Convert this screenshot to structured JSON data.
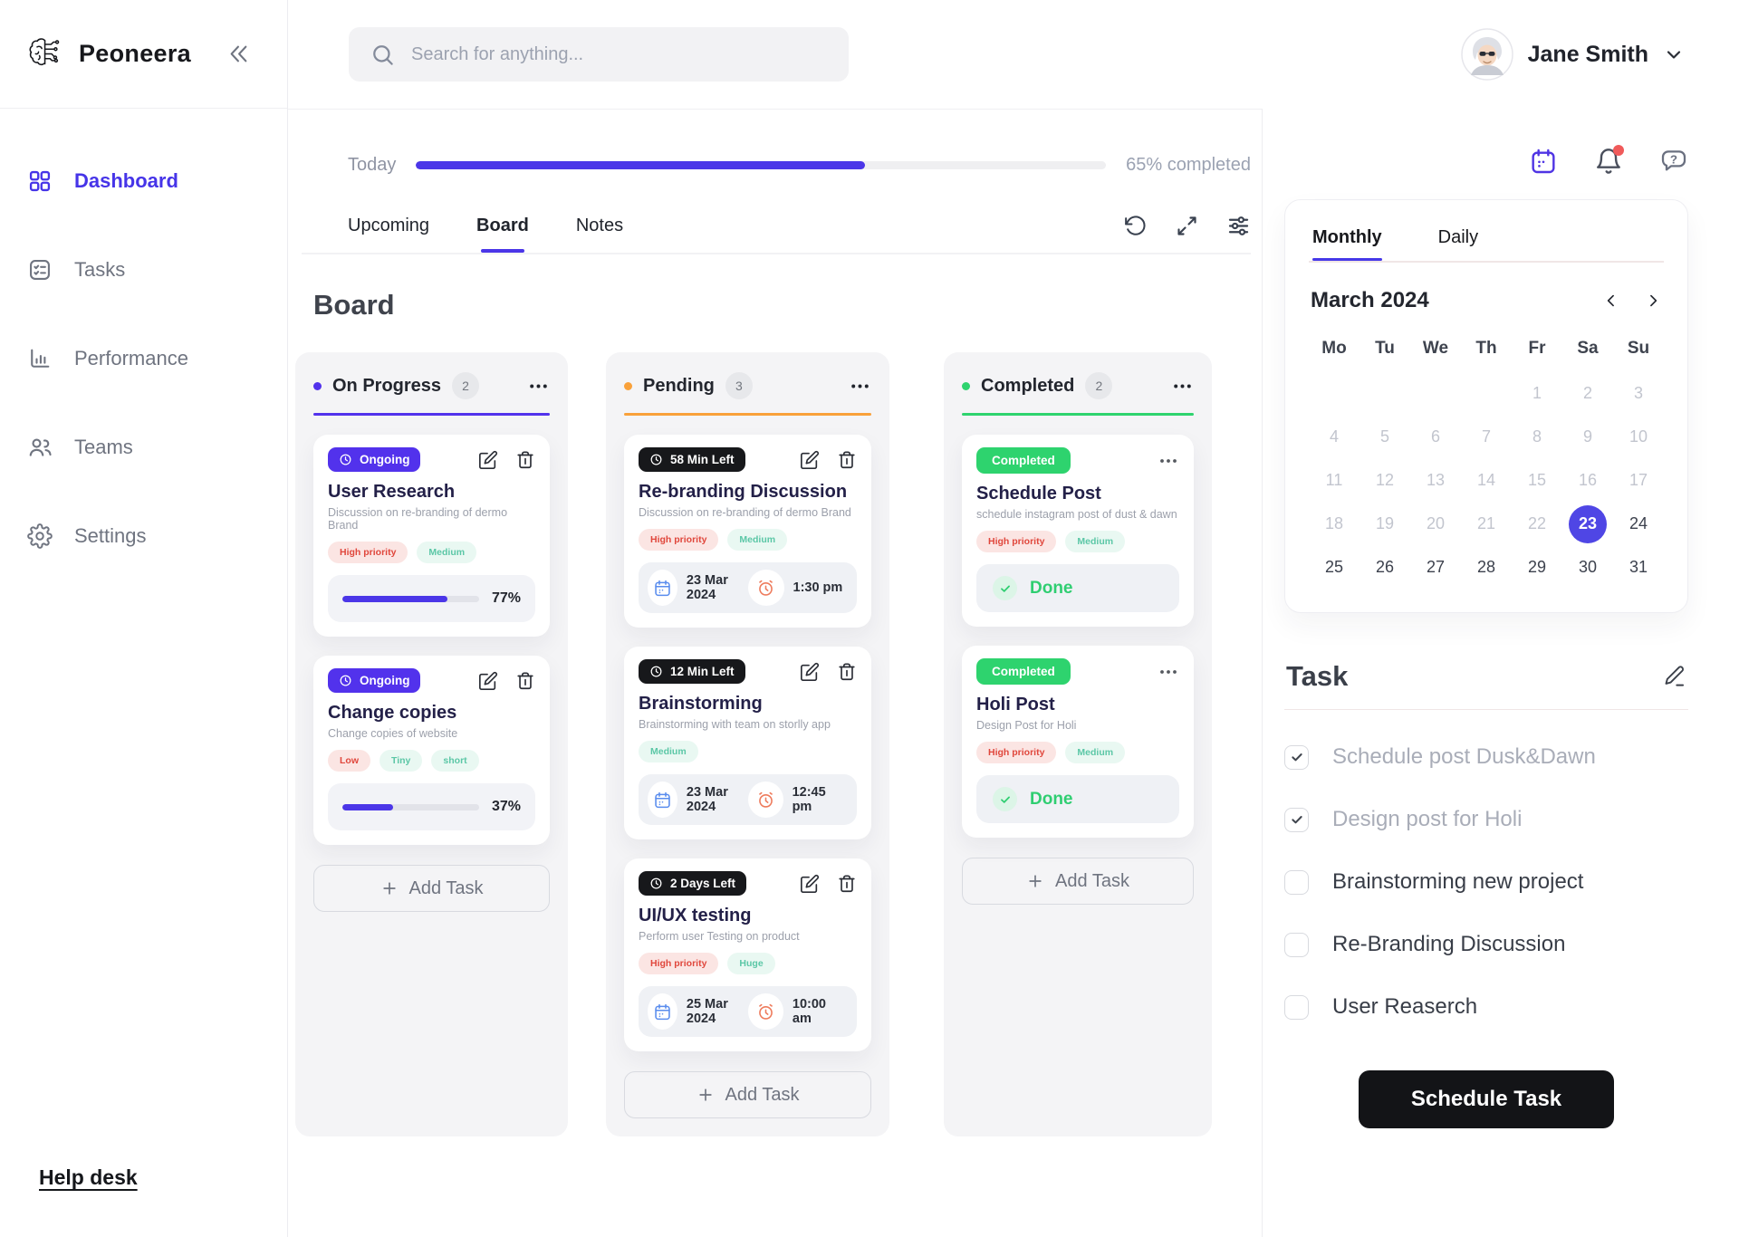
{
  "colors": {
    "accent": "#4B36E8",
    "on_progress": "#5232EC",
    "pending": "#F9A13A",
    "completed": "#2ED36E",
    "danger_tag_text": "#E0473C",
    "danger_tag_bg": "#FBE5E3",
    "mint_tag_text": "#5BC7A6",
    "mint_tag_bg": "#E9F8F2",
    "dark_badge": "#17181B",
    "done_green": "#2FCE71",
    "selected_day_bg": "#4F46E5",
    "notification_dot": "#F05A5A",
    "calendar_chip_icon": "#5A8DEE",
    "alarm_chip_icon": "#EE7B5C"
  },
  "sidebar": {
    "brand": "Peoneera",
    "items": [
      {
        "label": "Dashboard",
        "icon": "grid-icon",
        "active": true
      },
      {
        "label": "Tasks",
        "icon": "tasks-icon",
        "active": false
      },
      {
        "label": "Performance",
        "icon": "bar-chart-icon",
        "active": false
      },
      {
        "label": "Teams",
        "icon": "people-icon",
        "active": false
      },
      {
        "label": "Settings",
        "icon": "gear-icon",
        "active": false
      }
    ],
    "help_label": "Help desk"
  },
  "header": {
    "search_placeholder": "Search for anything...",
    "user_name": "Jane Smith"
  },
  "overview": {
    "today_label": "Today",
    "progress_percent": 65,
    "progress_label": "65% completed",
    "tabs": [
      {
        "label": "Upcoming",
        "active": false
      },
      {
        "label": "Board",
        "active": true
      },
      {
        "label": "Notes",
        "active": false
      }
    ]
  },
  "board": {
    "title": "Board",
    "add_task_label": "Add Task",
    "columns": [
      {
        "name": "On Progress",
        "count": 2,
        "color": "#5232EC",
        "kind": "progress",
        "cards": [
          {
            "badge": "Ongoing",
            "title": "User Research",
            "subtitle": "Discussion on re-branding of dermo Brand",
            "tags": [
              {
                "label": "High priority",
                "type": "danger"
              },
              {
                "label": "Medium",
                "type": "mint"
              }
            ],
            "percent": 77
          },
          {
            "badge": "Ongoing",
            "title": "Change copies",
            "subtitle": "Change copies of website",
            "tags": [
              {
                "label": "Low",
                "type": "danger"
              },
              {
                "label": "Tiny",
                "type": "mint"
              },
              {
                "label": "short",
                "type": "mint"
              }
            ],
            "percent": 37
          }
        ]
      },
      {
        "name": "Pending",
        "count": 3,
        "color": "#F9A13A",
        "kind": "schedule",
        "cards": [
          {
            "badge": "58 Min Left",
            "title": "Re-branding Discussion",
            "subtitle": "Discussion on re-branding of dermo Brand",
            "tags": [
              {
                "label": "High priority",
                "type": "danger"
              },
              {
                "label": "Medium",
                "type": "mint"
              }
            ],
            "date": "23 Mar 2024",
            "time": "1:30 pm"
          },
          {
            "badge": "12 Min Left",
            "title": "Brainstorming",
            "subtitle": "Brainstorming with team on storlly app",
            "tags": [
              {
                "label": "Medium",
                "type": "mint"
              }
            ],
            "date": "23 Mar 2024",
            "time": "12:45 pm"
          },
          {
            "badge": "2 Days Left",
            "title": "UI/UX testing",
            "subtitle": "Perform user Testing on product",
            "tags": [
              {
                "label": "High priority",
                "type": "danger"
              },
              {
                "label": "Huge",
                "type": "mint"
              }
            ],
            "date": "25 Mar 2024",
            "time": "10:00 am"
          }
        ]
      },
      {
        "name": "Completed",
        "count": 2,
        "color": "#2ED36E",
        "kind": "done",
        "cards": [
          {
            "badge": "Completed",
            "title": "Schedule Post",
            "subtitle": "schedule instagram post of dust & dawn",
            "tags": [
              {
                "label": "High priority",
                "type": "danger"
              },
              {
                "label": "Medium",
                "type": "mint"
              }
            ],
            "done_label": "Done"
          },
          {
            "badge": "Completed",
            "title": "Holi Post",
            "subtitle": "Design Post for Holi",
            "tags": [
              {
                "label": "High priority",
                "type": "danger"
              },
              {
                "label": "Medium",
                "type": "mint"
              }
            ],
            "done_label": "Done"
          }
        ]
      }
    ]
  },
  "panel": {
    "calendar": {
      "tabs": [
        {
          "label": "Monthly",
          "active": true
        },
        {
          "label": "Daily",
          "active": false
        }
      ],
      "month_label": "March 2024",
      "weekdays": [
        "Mo",
        "Tu",
        "We",
        "Th",
        "Fr",
        "Sa",
        "Su"
      ],
      "selected_day": "23",
      "days": [
        {
          "label": "",
          "state": "empty"
        },
        {
          "label": "",
          "state": "empty"
        },
        {
          "label": "",
          "state": "empty"
        },
        {
          "label": "",
          "state": "empty"
        },
        {
          "label": "1",
          "state": "muted"
        },
        {
          "label": "2",
          "state": "muted"
        },
        {
          "label": "3",
          "state": "muted"
        },
        {
          "label": "4",
          "state": "muted"
        },
        {
          "label": "5",
          "state": "muted"
        },
        {
          "label": "6",
          "state": "muted"
        },
        {
          "label": "7",
          "state": "muted"
        },
        {
          "label": "8",
          "state": "muted"
        },
        {
          "label": "9",
          "state": "muted"
        },
        {
          "label": "10",
          "state": "muted"
        },
        {
          "label": "11",
          "state": "muted"
        },
        {
          "label": "12",
          "state": "muted"
        },
        {
          "label": "13",
          "state": "muted"
        },
        {
          "label": "14",
          "state": "muted"
        },
        {
          "label": "15",
          "state": "muted"
        },
        {
          "label": "16",
          "state": "muted"
        },
        {
          "label": "17",
          "state": "muted"
        },
        {
          "label": "18",
          "state": "muted"
        },
        {
          "label": "19",
          "state": "muted"
        },
        {
          "label": "20",
          "state": "muted"
        },
        {
          "label": "21",
          "state": "muted"
        },
        {
          "label": "22",
          "state": "muted"
        },
        {
          "label": "23",
          "state": "selected"
        },
        {
          "label": "24",
          "state": "normal"
        },
        {
          "label": "25",
          "state": "normal"
        },
        {
          "label": "26",
          "state": "normal"
        },
        {
          "label": "27",
          "state": "normal"
        },
        {
          "label": "28",
          "state": "normal"
        },
        {
          "label": "29",
          "state": "normal"
        },
        {
          "label": "30",
          "state": "normal"
        },
        {
          "label": "31",
          "state": "normal"
        }
      ]
    },
    "tasks": {
      "title": "Task",
      "items": [
        {
          "label": "Schedule post Dusk&Dawn",
          "checked": true
        },
        {
          "label": "Design post for Holi",
          "checked": true
        },
        {
          "label": "Brainstorming new project",
          "checked": false
        },
        {
          "label": "Re-Branding Discussion",
          "checked": false
        },
        {
          "label": "User Reaserch",
          "checked": false
        }
      ],
      "schedule_button_label": "Schedule Task"
    }
  }
}
